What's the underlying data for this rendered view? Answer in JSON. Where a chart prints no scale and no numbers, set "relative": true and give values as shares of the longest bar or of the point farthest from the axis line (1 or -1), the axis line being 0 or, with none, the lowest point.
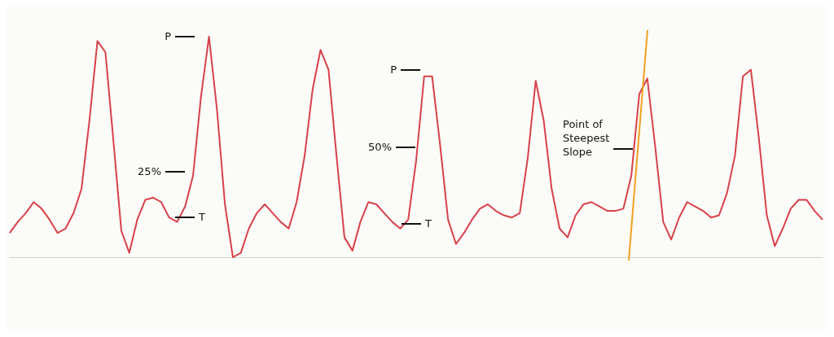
{
  "chart_data": {
    "type": "line",
    "relative": true,
    "categories": [
      null,
      null,
      null,
      null,
      null,
      null,
      null,
      null,
      null,
      null,
      null,
      null,
      null,
      null,
      null,
      null,
      null,
      null,
      null,
      null,
      null,
      null,
      null,
      null,
      null,
      null,
      null,
      null,
      null,
      null,
      null,
      null,
      null,
      null,
      null,
      null,
      null,
      null,
      null,
      null,
      null,
      null,
      null,
      null,
      null,
      null,
      null,
      null,
      null,
      null,
      null,
      null,
      null,
      null,
      null,
      null,
      null,
      null,
      null,
      null,
      null,
      null,
      null,
      null,
      null,
      null,
      null,
      null,
      null,
      null,
      null,
      null,
      null,
      null,
      null,
      null,
      null,
      null,
      null,
      null,
      null,
      null,
      null,
      null,
      null,
      null,
      null,
      null,
      null,
      null,
      null,
      null,
      null,
      null,
      null,
      null,
      null,
      null,
      null,
      null,
      null,
      null,
      null
    ],
    "series": [
      {
        "color": "#d8414a",
        "values": [
          0.11,
          0.16,
          0.2,
          0.25,
          0.22,
          0.17,
          0.11,
          0.13,
          0.2,
          0.31,
          0.62,
          0.98,
          0.93,
          0.53,
          0.12,
          0.02,
          0.17,
          0.26,
          0.27,
          0.25,
          0.18,
          0.16,
          0.23,
          0.37,
          0.73,
          1,
          0.67,
          0.24,
          0,
          0.02,
          0.13,
          0.2,
          0.24,
          0.2,
          0.16,
          0.13,
          0.25,
          0.46,
          0.76,
          0.94,
          0.85,
          0.46,
          0.09,
          0.03,
          0.16,
          0.25,
          0.24,
          0.2,
          0.16,
          0.13,
          0.17,
          0.44,
          0.82,
          0.82,
          0.51,
          0.17,
          0.06,
          0.11,
          0.17,
          0.22,
          0.24,
          0.21,
          0.19,
          0.18,
          0.2,
          0.45,
          0.8,
          0.62,
          0.31,
          0.13,
          0.09,
          0.19,
          0.24,
          0.25,
          0.23,
          0.21,
          0.21,
          0.22,
          0.37,
          0.74,
          0.81,
          0.5,
          0.16,
          0.08,
          0.18,
          0.25,
          0.23,
          0.21,
          0.18,
          0.19,
          0.29,
          0.46,
          0.82,
          0.85,
          0.54,
          0.19,
          0.05,
          0.13,
          0.22,
          0.26,
          0.26,
          0.21,
          0.17
        ]
      }
    ],
    "annotations": [
      "P",
      "T",
      "25%",
      "P",
      "50%",
      "T",
      "Point of Steepest Slope"
    ]
  }
}
